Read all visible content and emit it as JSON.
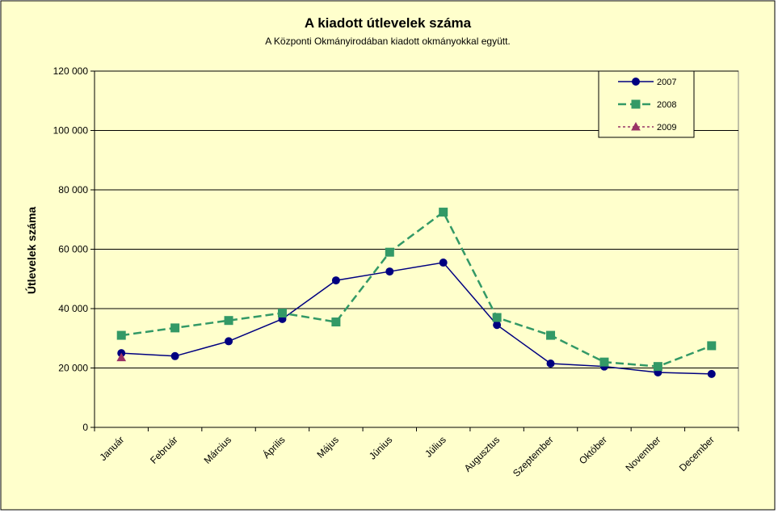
{
  "chart_data": {
    "type": "line",
    "title": "A  kiadott útlevelek száma",
    "subtitle": "A Központi Okmányirodában kiadott okmányokkal együtt.",
    "ylabel": "Útlevelek száma",
    "xlabel": "",
    "ylim": [
      0,
      120000
    ],
    "yticks": [
      0,
      20000,
      40000,
      60000,
      80000,
      100000,
      120000
    ],
    "ytick_labels": [
      "0",
      "20 000",
      "40 000",
      "60 000",
      "80 000",
      "100 000",
      "120 000"
    ],
    "grid": true,
    "legend_position": "top-right",
    "categories": [
      "Január",
      "Február",
      "Március",
      "Április",
      "Május",
      "Június",
      "Július",
      "Augusztus",
      "Szeptember",
      "Október",
      "November",
      "December"
    ],
    "series": [
      {
        "name": "2007",
        "color": "#000080",
        "marker": "circle",
        "dash": "solid",
        "values": [
          25000,
          24000,
          29000,
          36500,
          49500,
          52500,
          55500,
          34500,
          21500,
          20500,
          18500,
          18000
        ]
      },
      {
        "name": "2008",
        "color": "#339966",
        "marker": "square",
        "dash": "dashed",
        "values": [
          31000,
          33500,
          36000,
          38500,
          35500,
          59000,
          72500,
          37000,
          31000,
          22000,
          20500,
          27500
        ]
      },
      {
        "name": "2009",
        "color": "#993366",
        "marker": "triangle",
        "dash": "dotted",
        "values": [
          23500,
          null,
          null,
          null,
          null,
          null,
          null,
          null,
          null,
          null,
          null,
          null
        ]
      }
    ]
  },
  "colors": {
    "chart_background": "#FFFFCC",
    "plot_background": "#FFFFCC",
    "gridline": "#000000"
  }
}
